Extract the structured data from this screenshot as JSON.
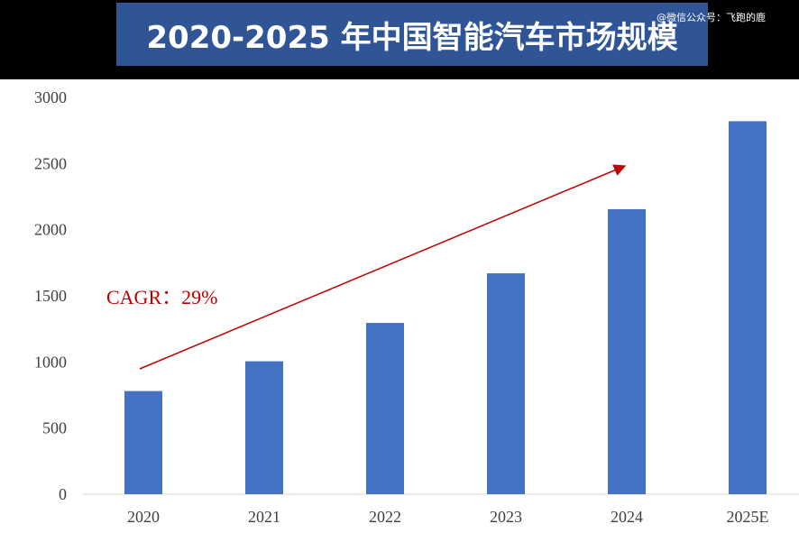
{
  "header": {
    "title": "2020-2025 年中国智能汽车市场规模",
    "watermark": "@微信公众号：飞跑的鹿"
  },
  "colors": {
    "bar": "#4472c4",
    "title_bg": "#2f5597",
    "annotation": "#c00000",
    "axis_text": "#404040"
  },
  "chart_data": {
    "type": "bar",
    "title": "2020-2025 年中国智能汽车市场规模",
    "categories": [
      "2020",
      "2021",
      "2022",
      "2023",
      "2024",
      "2025E"
    ],
    "values": [
      780,
      1005,
      1295,
      1670,
      2155,
      2820
    ],
    "ylim": [
      0,
      3000
    ],
    "yticks": [
      0,
      500,
      1000,
      1500,
      2000,
      2500,
      3000
    ],
    "xlabel": "",
    "ylabel": "",
    "grid": false,
    "legend": "none",
    "annotations": [
      {
        "text": "CAGR：29%"
      }
    ]
  }
}
